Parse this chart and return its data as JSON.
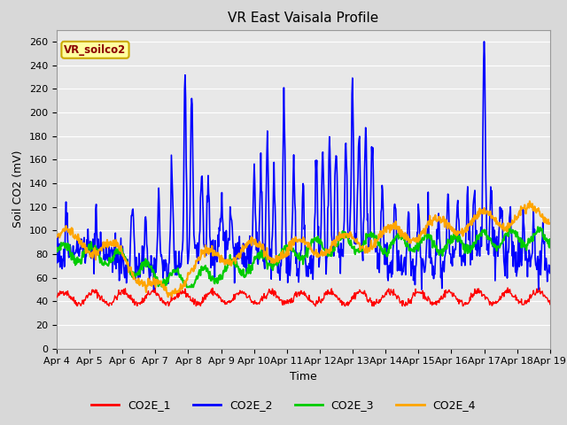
{
  "title": "VR East Vaisala Profile",
  "ylabel": "Soil CO2 (mV)",
  "xlabel": "Time",
  "annotation_text": "VR_soilco2",
  "ylim": [
    0,
    270
  ],
  "yticks": [
    0,
    20,
    40,
    60,
    80,
    100,
    120,
    140,
    160,
    180,
    200,
    220,
    240,
    260
  ],
  "xtick_labels": [
    "Apr 4",
    "Apr 5",
    "Apr 6",
    "Apr 7",
    "Apr 8",
    "Apr 9",
    "Apr 10",
    "Apr 11",
    "Apr 12",
    "Apr 13",
    "Apr 14",
    "Apr 15",
    "Apr 16",
    "Apr 17",
    "Apr 18",
    "Apr 19"
  ],
  "fig_bg_color": "#d8d8d8",
  "plot_bg_color": "#e8e8e8",
  "grid_color": "#ffffff",
  "line_colors": {
    "CO2E_1": "#ff0000",
    "CO2E_2": "#0000ff",
    "CO2E_3": "#00cc00",
    "CO2E_4": "#ffa500"
  },
  "line_widths": {
    "CO2E_1": 1.0,
    "CO2E_2": 1.2,
    "CO2E_3": 1.5,
    "CO2E_4": 1.5
  },
  "title_fontsize": 11,
  "axis_label_fontsize": 9,
  "tick_fontsize": 8
}
